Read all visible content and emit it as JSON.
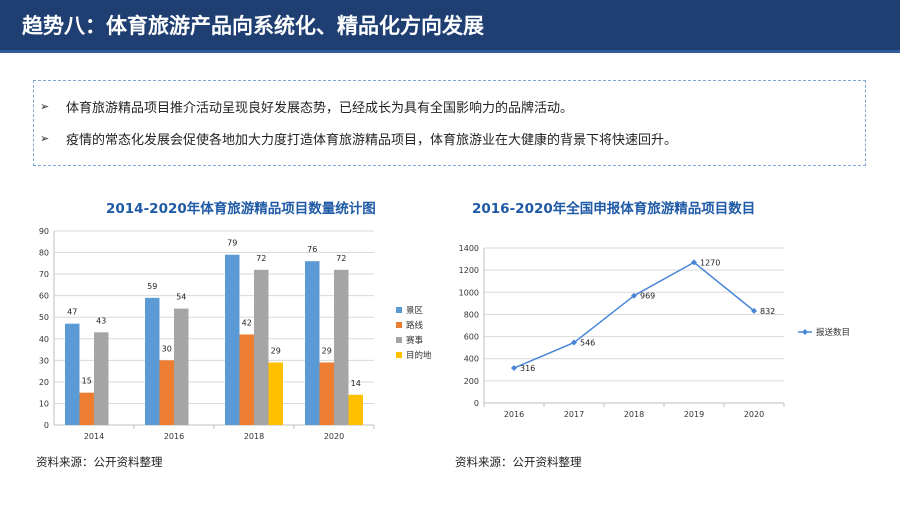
{
  "header": {
    "title": "趋势八：体育旅游产品向系统化、精品化方向发展"
  },
  "bullets": [
    {
      "icon": "arrow-bullet-icon",
      "text": "体育旅游精品项目推介活动呈现良好发展态势，已经成长为具有全国影响力的品牌活动。"
    },
    {
      "icon": "arrow-bullet-icon",
      "text": "疫情的常态化发展会促使各地加大力度打造体育旅游精品项目，体育旅游业在大健康的背景下将快速回升。"
    }
  ],
  "bullet_symbol": "➢",
  "colors": {
    "header_bg": "#1f3f73",
    "title_blue": "#1f5aa6",
    "series": [
      "#5b9bd5",
      "#ed7d31",
      "#a5a5a5",
      "#ffc000"
    ],
    "line": "#4a86d8"
  },
  "chart_data": [
    {
      "type": "bar",
      "title": "2014-2020年体育旅游精品项目数量统计图",
      "categories": [
        "2014",
        "2016",
        "2018",
        "2020"
      ],
      "series": [
        {
          "name": "景区",
          "values": [
            47,
            59,
            79,
            76
          ]
        },
        {
          "name": "路线",
          "values": [
            15,
            30,
            42,
            29
          ]
        },
        {
          "name": "赛事",
          "values": [
            43,
            54,
            72,
            72
          ]
        },
        {
          "name": "目的地",
          "values": [
            null,
            null,
            29,
            14
          ]
        }
      ],
      "ylim": [
        0,
        90
      ],
      "yticks": [
        0,
        10,
        20,
        30,
        40,
        50,
        60,
        70,
        80,
        90
      ],
      "grid": true,
      "legend": "right",
      "source": "资料来源：公开资料整理"
    },
    {
      "type": "line",
      "title": "2016-2020年全国申报体育旅游精品项目数目",
      "x": [
        "2016",
        "2017",
        "2018",
        "2019",
        "2020"
      ],
      "series": [
        {
          "name": "报送数目",
          "values": [
            316,
            546,
            969,
            1270,
            832
          ]
        }
      ],
      "ylim": [
        0,
        1400
      ],
      "yticks": [
        0,
        200,
        400,
        600,
        800,
        1000,
        1200,
        1400
      ],
      "grid": true,
      "legend": "right",
      "source": "资料来源：公开资料整理"
    }
  ]
}
